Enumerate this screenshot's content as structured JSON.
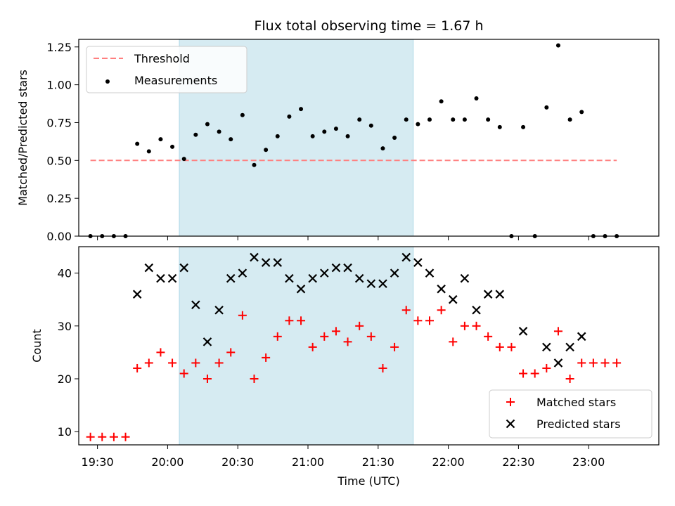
{
  "chart_data": [
    {
      "type": "scatter",
      "panel": "top",
      "title": "Flux total observing time = 1.67 h",
      "xlabel": "",
      "ylabel": "Matched/Predicted stars",
      "ylim": [
        0.0,
        1.3
      ],
      "yticks": [
        "0.00",
        "0.25",
        "0.50",
        "0.75",
        "1.00",
        "1.25"
      ],
      "x_unit": "minutes after 19:00 UTC",
      "xlim": [
        22,
        270
      ],
      "shaded_span": [
        65,
        165
      ],
      "shade_color": "#add8e6",
      "grid": false,
      "legend_position": "top-left",
      "threshold": {
        "name": "Threshold",
        "value": 0.5,
        "x_range": [
          27,
          252
        ],
        "color": "#ff7f7f",
        "style": "dashed"
      },
      "series": [
        {
          "name": "Measurements",
          "color": "#000000",
          "marker": "dot",
          "x": [
            27,
            32,
            37,
            42,
            47,
            52,
            57,
            62,
            67,
            72,
            77,
            82,
            87,
            92,
            97,
            102,
            107,
            112,
            117,
            122,
            127,
            132,
            137,
            142,
            147,
            152,
            157,
            162,
            167,
            172,
            177,
            182,
            187,
            192,
            197,
            202,
            207,
            212,
            217,
            222,
            227,
            232,
            237,
            242,
            247,
            252
          ],
          "y": [
            0.0,
            0.0,
            0.0,
            0.0,
            0.61,
            0.56,
            0.64,
            0.59,
            0.51,
            0.67,
            0.74,
            0.69,
            0.64,
            0.8,
            0.47,
            0.57,
            0.66,
            0.79,
            0.84,
            0.66,
            0.69,
            0.71,
            0.66,
            0.77,
            0.73,
            0.58,
            0.65,
            0.77,
            0.74,
            0.77,
            0.89,
            0.77,
            0.77,
            0.91,
            0.77,
            0.72,
            0.0,
            0.72,
            0.0,
            0.85,
            1.26,
            0.77,
            0.82,
            0.0,
            0.0,
            0.0
          ]
        }
      ]
    },
    {
      "type": "scatter",
      "panel": "bottom",
      "title": "",
      "xlabel": "Time (UTC)",
      "ylabel": "Count",
      "ylim": [
        7.5,
        45
      ],
      "yticks": [
        "10",
        "20",
        "30",
        "40"
      ],
      "x_unit": "minutes after 19:00 UTC",
      "xlim": [
        22,
        270
      ],
      "xticks": [
        "19:30",
        "20:00",
        "20:30",
        "21:00",
        "21:30",
        "22:00",
        "22:30",
        "23:00"
      ],
      "shaded_span": [
        65,
        165
      ],
      "shade_color": "#add8e6",
      "grid": false,
      "legend_position": "bottom-right",
      "series": [
        {
          "name": "Matched stars",
          "color": "#ff0000",
          "marker": "plus",
          "x": [
            27,
            32,
            37,
            42,
            47,
            52,
            57,
            62,
            67,
            72,
            77,
            82,
            87,
            92,
            97,
            102,
            107,
            112,
            117,
            122,
            127,
            132,
            137,
            142,
            147,
            152,
            157,
            162,
            167,
            172,
            177,
            182,
            187,
            192,
            197,
            202,
            207,
            212,
            217,
            222,
            227,
            232,
            237,
            242,
            247,
            252
          ],
          "y": [
            9,
            9,
            9,
            9,
            22,
            23,
            25,
            23,
            21,
            23,
            20,
            23,
            25,
            32,
            20,
            24,
            28,
            31,
            31,
            26,
            28,
            29,
            27,
            30,
            28,
            22,
            26,
            33,
            31,
            31,
            33,
            27,
            30,
            30,
            28,
            26,
            26,
            21,
            21,
            22,
            29,
            20,
            23,
            23,
            23,
            23
          ]
        },
        {
          "name": "Predicted stars",
          "color": "#000000",
          "marker": "x",
          "x": [
            47,
            52,
            57,
            62,
            67,
            72,
            77,
            82,
            87,
            92,
            97,
            102,
            107,
            112,
            117,
            122,
            127,
            132,
            137,
            142,
            147,
            152,
            157,
            162,
            167,
            172,
            177,
            182,
            187,
            192,
            197,
            202,
            212,
            222,
            227,
            232,
            237
          ],
          "y": [
            36,
            41,
            39,
            39,
            41,
            34,
            27,
            33,
            39,
            40,
            43,
            42,
            42,
            39,
            37,
            39,
            40,
            41,
            41,
            39,
            38,
            38,
            40,
            43,
            42,
            40,
            37,
            35,
            39,
            33,
            36,
            36,
            29,
            26,
            23,
            26,
            28
          ]
        }
      ]
    }
  ]
}
